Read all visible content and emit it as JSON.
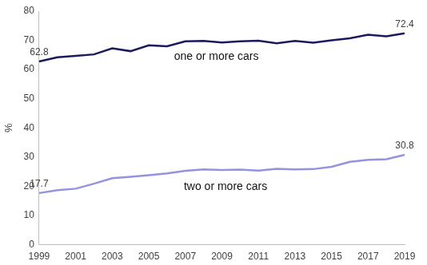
{
  "chart_data": {
    "type": "line",
    "y_label": "%",
    "categories": [
      "1999",
      null,
      "2001",
      null,
      "2003",
      null,
      "2005",
      null,
      "2007",
      null,
      "2009",
      null,
      "2011",
      null,
      "2013",
      null,
      "2015",
      null,
      "2017",
      null,
      "2019"
    ],
    "series": [
      {
        "name": "one or more cars",
        "color": "#1b1a5c",
        "values": [
          62.8,
          64.2,
          64.7,
          65.2,
          67.3,
          66.3,
          68.3,
          68.0,
          69.7,
          69.8,
          69.3,
          69.7,
          69.9,
          69.0,
          69.8,
          69.2,
          70.0,
          70.7,
          71.9,
          71.4,
          72.4
        ]
      },
      {
        "name": "two or more cars",
        "color": "#9393e0",
        "values": [
          17.7,
          18.7,
          19.2,
          20.9,
          22.8,
          23.3,
          23.8,
          24.4,
          25.3,
          25.8,
          25.6,
          25.7,
          25.4,
          26.0,
          25.8,
          25.9,
          26.7,
          28.4,
          29.1,
          29.3,
          30.8
        ]
      }
    ],
    "annotations": [
      {
        "text": "62.8",
        "x": "1999",
        "y": 62.8
      },
      {
        "text": "72.4",
        "x": "2019",
        "y": 72.4
      },
      {
        "text": "17.7",
        "x": "1999",
        "y": 17.7
      },
      {
        "text": "30.8",
        "x": "2019",
        "y": 30.8
      }
    ],
    "ylim": [
      0,
      80
    ],
    "yticks": [
      0,
      10,
      20,
      30,
      40,
      50,
      60,
      70,
      80
    ],
    "grid": false
  }
}
